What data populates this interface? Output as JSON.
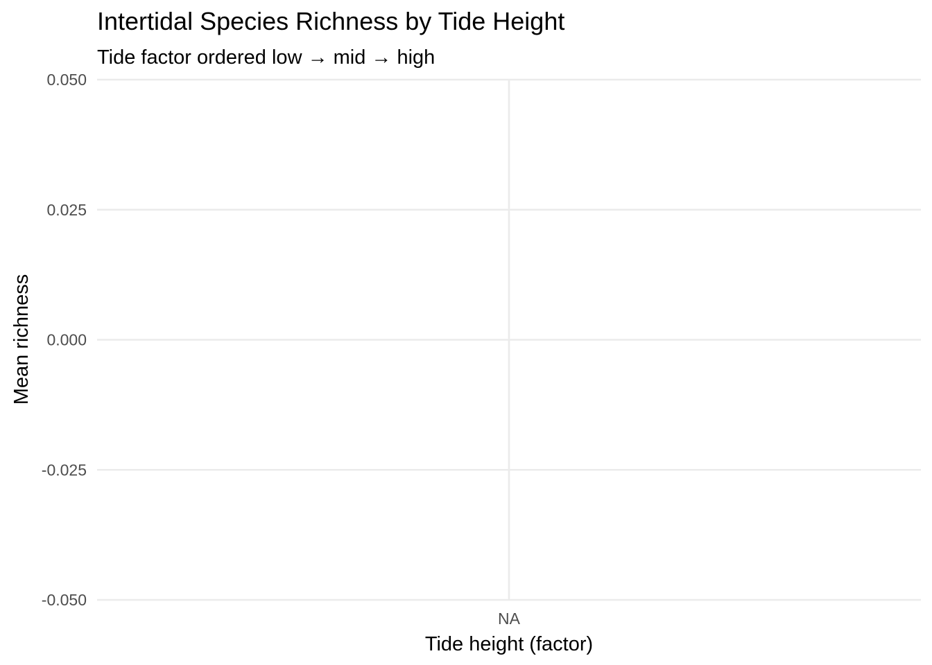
{
  "chart_data": {
    "type": "bar",
    "title": "Intertidal Species Richness by Tide Height",
    "subtitle": "Tide factor ordered low → mid → high",
    "xlabel": "Tide height (factor)",
    "ylabel": "Mean richness",
    "categories": [
      "NA"
    ],
    "values": [
      null
    ],
    "ylim": [
      -0.05,
      0.05
    ],
    "yticks": [
      -0.05,
      -0.025,
      0.0,
      0.025,
      0.05
    ],
    "ytick_labels": [
      "-0.050",
      "-0.025",
      "0.000",
      "0.025",
      "0.050"
    ],
    "grid": true,
    "legend": "none",
    "colors": {
      "background": "#ffffff",
      "grid": "#ebebeb",
      "tick_text": "#4d4d4d",
      "text": "#000000"
    }
  }
}
